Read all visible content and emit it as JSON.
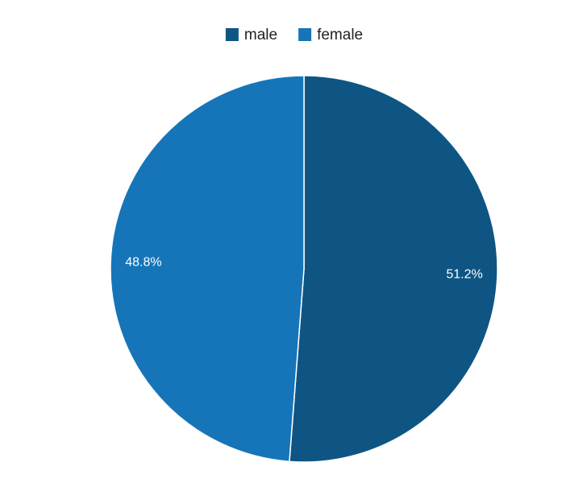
{
  "chart_data": {
    "type": "pie",
    "categories": [
      "male",
      "female"
    ],
    "values": [
      51.2,
      48.8
    ],
    "value_labels": [
      "51.2%",
      "48.8%"
    ],
    "colors": [
      "#0e5584",
      "#1675b9"
    ],
    "legend": "top"
  }
}
